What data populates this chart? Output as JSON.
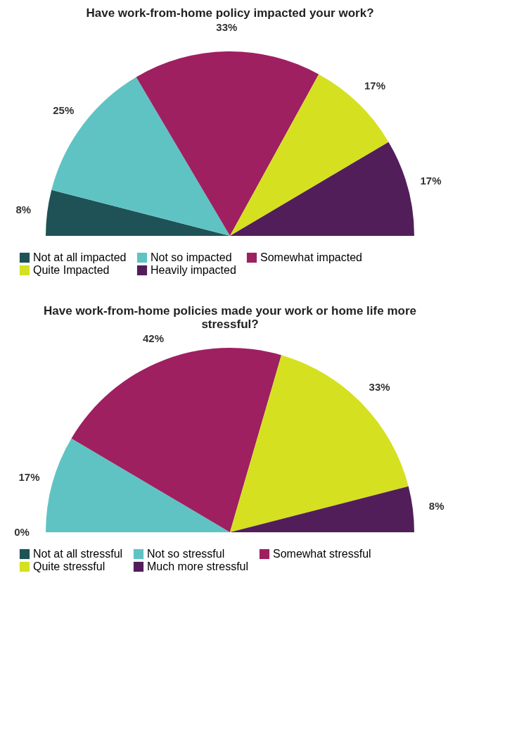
{
  "chart_data": [
    {
      "type": "pie",
      "title": "Have work-from-home policy impacted your work?",
      "categories": [
        "Not at all impacted",
        "Not so impacted",
        "Somewhat impacted",
        "Quite Impacted",
        "Heavily impacted"
      ],
      "values": [
        8,
        25,
        33,
        17,
        17
      ],
      "value_labels": [
        "8%",
        "25%",
        "33%",
        "17%",
        "17%"
      ],
      "colors": [
        "#1f5257",
        "#5fc3c3",
        "#9e2060",
        "#d5e021",
        "#521e5a"
      ],
      "legend": "bottom"
    },
    {
      "type": "pie",
      "title": "Have work-from-home policies made your work or home life more stressful?",
      "categories": [
        "Not at all stressful",
        "Not so stressful",
        "Somewhat stressful",
        "Quite stressful",
        "Much more stressful"
      ],
      "values": [
        0,
        17,
        42,
        33,
        8
      ],
      "value_labels": [
        "0%",
        "17%",
        "42%",
        "33%",
        "8%"
      ],
      "colors": [
        "#1f5257",
        "#5fc3c3",
        "#9e2060",
        "#d5e021",
        "#521e5a"
      ],
      "legend": "bottom"
    }
  ]
}
